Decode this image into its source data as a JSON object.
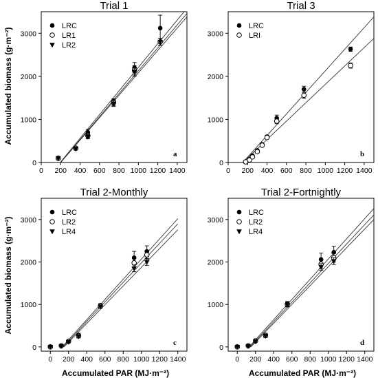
{
  "figure": {
    "ylabel": "Accumulated biomass (g·m⁻²)",
    "xlabel": "Accumulated PAR (MJ·m⁻²)"
  },
  "chart_data": [
    {
      "type": "scatter",
      "title": "Trial 1",
      "panel_letter": "a",
      "xlim": [
        0,
        1500
      ],
      "ylim": [
        0,
        3500
      ],
      "x_ticks": [
        "0",
        "200",
        "400",
        "600",
        "800",
        "1000",
        "1200",
        "1400"
      ],
      "y_ticks": [
        "0",
        "1000",
        "2000",
        "3000"
      ],
      "legend_position": "top-left",
      "series": [
        {
          "name": "LRC",
          "marker": "filled-circle",
          "points": [
            [
              175,
              110
            ],
            [
              355,
              340
            ],
            [
              480,
              700
            ],
            [
              745,
              1420
            ],
            [
              960,
              2200
            ],
            [
              1225,
              3120
            ]
          ],
          "errors": [
            20,
            30,
            70,
            60,
            120,
            300
          ]
        },
        {
          "name": "LR1",
          "marker": "open-circle",
          "points": [
            [
              175,
              95
            ],
            [
              355,
              330
            ],
            [
              480,
              620
            ],
            [
              745,
              1390
            ],
            [
              960,
              2140
            ],
            [
              1225,
              2800
            ]
          ],
          "errors": [
            20,
            30,
            50,
            70,
            110,
            80
          ]
        },
        {
          "name": "LR2",
          "marker": "filled-triangle",
          "points": [
            [
              175,
              100
            ],
            [
              355,
              320
            ],
            [
              480,
              600
            ],
            [
              745,
              1370
            ],
            [
              960,
              2110
            ],
            [
              1225,
              2800
            ]
          ],
          "errors": [
            20,
            30,
            50,
            70,
            110,
            80
          ]
        }
      ],
      "fit_lines": [
        {
          "x": [
            195,
            1500
          ],
          "y": [
            0,
            3580
          ]
        },
        {
          "x": [
            200,
            1500
          ],
          "y": [
            0,
            3460
          ]
        },
        {
          "x": [
            200,
            1500
          ],
          "y": [
            0,
            3380
          ]
        }
      ]
    },
    {
      "type": "scatter",
      "title": "Trial 3",
      "panel_letter": "b",
      "xlim": [
        0,
        1500
      ],
      "ylim": [
        0,
        3500
      ],
      "x_ticks": [
        "0",
        "200",
        "400",
        "600",
        "800",
        "1000",
        "1200",
        "1400"
      ],
      "y_ticks": [
        "0",
        "1000",
        "2000",
        "3000"
      ],
      "legend_position": "top-left",
      "series": [
        {
          "name": "LRC",
          "marker": "filled-circle",
          "points": [
            [
              180,
              20
            ],
            [
              220,
              80
            ],
            [
              250,
              160
            ],
            [
              300,
              280
            ],
            [
              350,
              420
            ],
            [
              400,
              600
            ],
            [
              500,
              1030
            ],
            [
              780,
              1700
            ],
            [
              1260,
              2630
            ]
          ],
          "errors": [
            10,
            10,
            15,
            20,
            20,
            30,
            70,
            70,
            50
          ]
        },
        {
          "name": "LRI",
          "marker": "open-circle",
          "points": [
            [
              180,
              15
            ],
            [
              220,
              60
            ],
            [
              250,
              130
            ],
            [
              300,
              250
            ],
            [
              350,
              400
            ],
            [
              400,
              580
            ],
            [
              500,
              960
            ],
            [
              780,
              1560
            ],
            [
              1260,
              2250
            ]
          ],
          "errors": [
            10,
            10,
            15,
            20,
            20,
            30,
            60,
            70,
            60
          ]
        }
      ],
      "fit_lines": [
        {
          "x": [
            150,
            1500
          ],
          "y": [
            0,
            3380
          ]
        },
        {
          "x": [
            150,
            1500
          ],
          "y": [
            0,
            2880
          ]
        }
      ]
    },
    {
      "type": "scatter",
      "title": "Trial 2-Monthly",
      "panel_letter": "c",
      "xlim": [
        -100,
        1500
      ],
      "ylim": [
        -100,
        3500
      ],
      "x_ticks": [
        "0",
        "200",
        "400",
        "600",
        "800",
        "1000",
        "1200",
        "1400"
      ],
      "y_ticks": [
        "0",
        "1000",
        "2000",
        "3000"
      ],
      "legend_position": "top-left",
      "series": [
        {
          "name": "LRC",
          "marker": "filled-circle",
          "points": [
            [
              0,
              0
            ],
            [
              120,
              30
            ],
            [
              200,
              140
            ],
            [
              310,
              280
            ],
            [
              550,
              980
            ],
            [
              920,
              2100
            ],
            [
              1060,
              2250
            ]
          ],
          "errors": [
            10,
            15,
            20,
            40,
            40,
            150,
            130
          ]
        },
        {
          "name": "LR2",
          "marker": "open-circle",
          "points": [
            [
              0,
              0
            ],
            [
              120,
              25
            ],
            [
              200,
              130
            ],
            [
              310,
              260
            ],
            [
              550,
              960
            ],
            [
              920,
              1980
            ],
            [
              1060,
              2170
            ]
          ],
          "errors": [
            10,
            15,
            20,
            40,
            40,
            100,
            100
          ]
        },
        {
          "name": "LR4",
          "marker": "filled-triangle",
          "points": [
            [
              0,
              0
            ],
            [
              120,
              20
            ],
            [
              200,
              120
            ],
            [
              310,
              250
            ],
            [
              550,
              950
            ],
            [
              920,
              1850
            ],
            [
              1060,
              2000
            ]
          ],
          "errors": [
            10,
            15,
            20,
            40,
            40,
            80,
            80
          ]
        }
      ],
      "fit_lines": [
        {
          "x": [
            130,
            1400
          ],
          "y": [
            0,
            3020
          ]
        },
        {
          "x": [
            140,
            1400
          ],
          "y": [
            0,
            2900
          ]
        },
        {
          "x": [
            150,
            1400
          ],
          "y": [
            0,
            2760
          ]
        }
      ]
    },
    {
      "type": "scatter",
      "title": "Trial 2-Fortnightly",
      "panel_letter": "d",
      "xlim": [
        -100,
        1500
      ],
      "ylim": [
        -100,
        3500
      ],
      "x_ticks": [
        "0",
        "200",
        "400",
        "600",
        "800",
        "1000",
        "1200",
        "1400"
      ],
      "y_ticks": [
        "0",
        "1000",
        "2000",
        "3000"
      ],
      "legend_position": "top-left",
      "series": [
        {
          "name": "LRC",
          "marker": "filled-circle",
          "points": [
            [
              0,
              0
            ],
            [
              120,
              30
            ],
            [
              200,
              150
            ],
            [
              310,
              280
            ],
            [
              550,
              1020
            ],
            [
              920,
              2060
            ],
            [
              1060,
              2230
            ]
          ],
          "errors": [
            10,
            15,
            20,
            40,
            50,
            150,
            140
          ]
        },
        {
          "name": "LR2",
          "marker": "open-circle",
          "points": [
            [
              0,
              0
            ],
            [
              120,
              25
            ],
            [
              200,
              140
            ],
            [
              310,
              270
            ],
            [
              550,
              1000
            ],
            [
              920,
              1950
            ],
            [
              1060,
              2100
            ]
          ],
          "errors": [
            10,
            15,
            20,
            40,
            50,
            100,
            100
          ]
        },
        {
          "name": "LR4",
          "marker": "filled-triangle",
          "points": [
            [
              0,
              0
            ],
            [
              120,
              20
            ],
            [
              200,
              130
            ],
            [
              310,
              260
            ],
            [
              550,
              990
            ],
            [
              920,
              1880
            ],
            [
              1060,
              2020
            ]
          ],
          "errors": [
            10,
            15,
            20,
            40,
            50,
            80,
            80
          ]
        }
      ],
      "fit_lines": [
        {
          "x": [
            130,
            1500
          ],
          "y": [
            0,
            3260
          ]
        },
        {
          "x": [
            140,
            1500
          ],
          "y": [
            0,
            3110
          ]
        },
        {
          "x": [
            150,
            1500
          ],
          "y": [
            0,
            3000
          ]
        }
      ]
    }
  ]
}
